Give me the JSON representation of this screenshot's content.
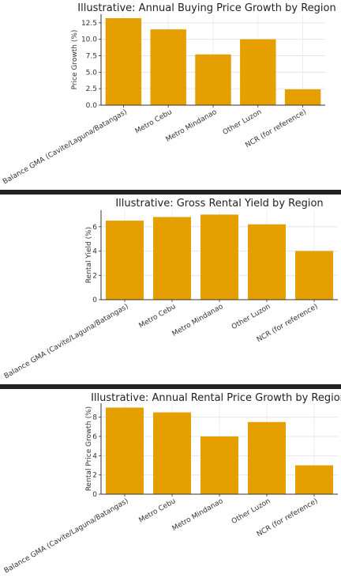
{
  "chart_data": [
    {
      "type": "bar",
      "title": "Illustrative: Annual Buying Price Growth by Region",
      "xlabel": "",
      "ylabel": "Price Growth (%)",
      "categories": [
        "Balance GMA (Cavite/Laguna/Batangas)",
        "Metro Cebu",
        "Metro Mindanao",
        "Other Luzon",
        "NCR (for reference)"
      ],
      "values": [
        13.2,
        11.5,
        7.7,
        10.0,
        2.4
      ],
      "yticks": [
        "0.0",
        "2.5",
        "5.0",
        "7.5",
        "10.0",
        "12.5"
      ],
      "ylim": [
        0,
        13.8
      ],
      "grid": true,
      "bar_color": "#E5A000"
    },
    {
      "type": "bar",
      "title": "Illustrative: Gross Rental Yield by Region",
      "xlabel": "",
      "ylabel": "Rental Yield (%)",
      "categories": [
        "Balance GMA (Cavite/Laguna/Batangas)",
        "Metro Cebu",
        "Metro Mindanao",
        "Other Luzon",
        "NCR (for reference)"
      ],
      "values": [
        6.5,
        6.8,
        7.0,
        6.2,
        4.0
      ],
      "yticks": [
        "0",
        "2",
        "4",
        "6"
      ],
      "ylim": [
        0,
        7.35
      ],
      "grid": true,
      "bar_color": "#E5A000"
    },
    {
      "type": "bar",
      "title": "Illustrative: Annual Rental Price Growth by Region",
      "xlabel": "",
      "ylabel": "Rental Price Growth (%)",
      "categories": [
        "Balance GMA (Cavite/Laguna/Batangas)",
        "Metro Cebu",
        "Metro Mindanao",
        "Other Luzon",
        "NCR (for reference)"
      ],
      "values": [
        9.0,
        8.5,
        6.0,
        7.5,
        3.0
      ],
      "yticks": [
        "0",
        "2",
        "4",
        "6",
        "8"
      ],
      "ylim": [
        0,
        9.45
      ],
      "grid": true,
      "bar_color": "#E5A000"
    }
  ]
}
